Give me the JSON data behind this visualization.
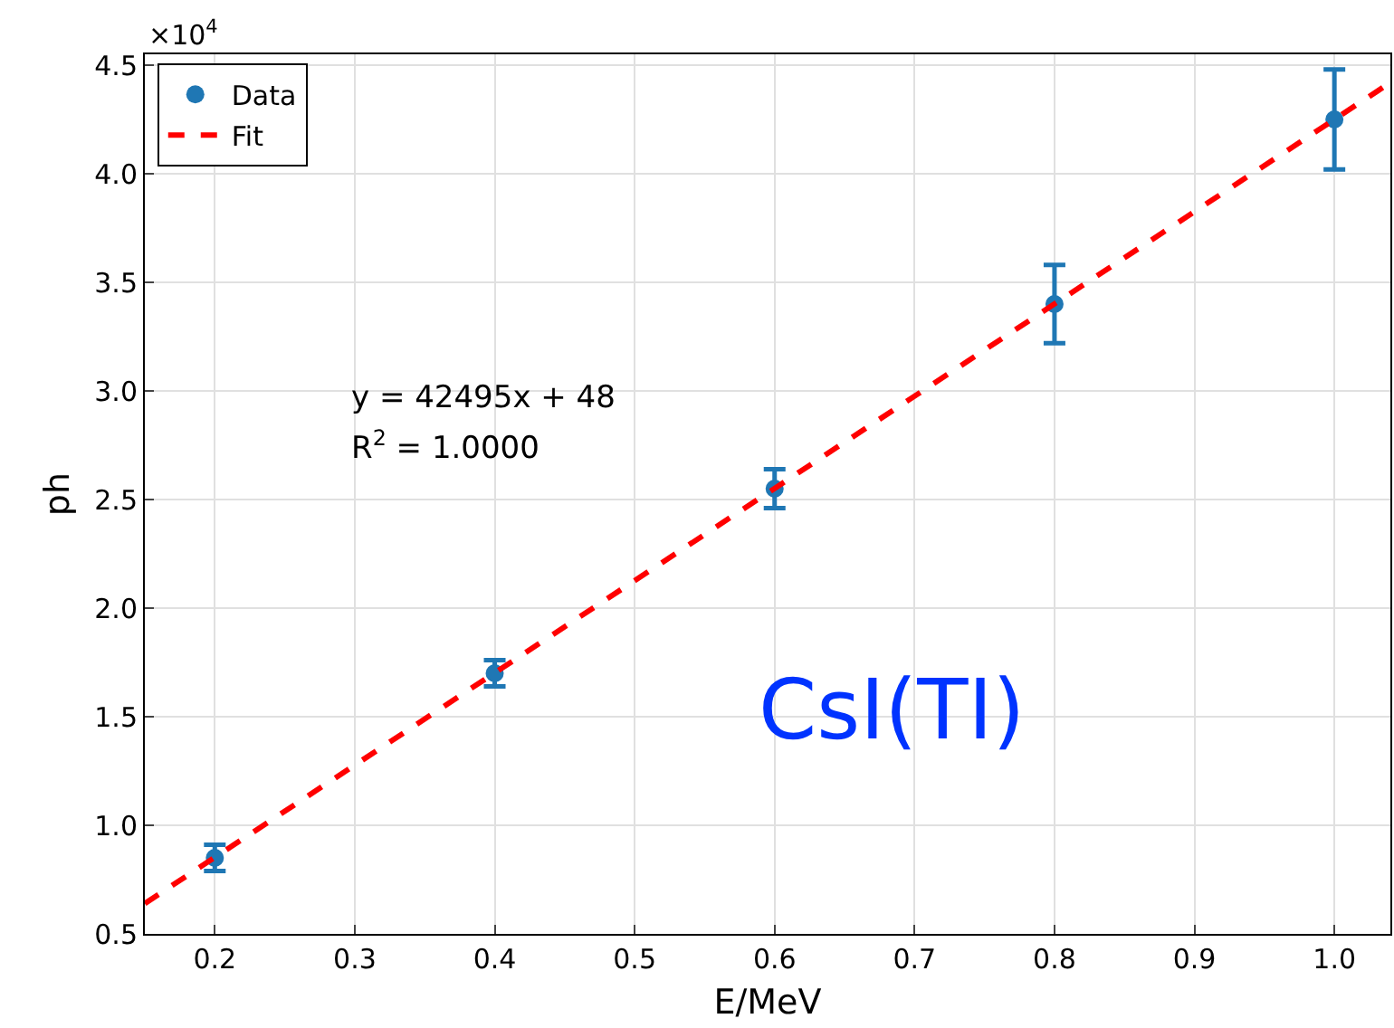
{
  "chart_data": {
    "type": "scatter",
    "xlabel": "E/MeV",
    "ylabel": "ph",
    "series": [
      {
        "name": "Data",
        "color": "#1f77b4",
        "x": [
          0.2,
          0.4,
          0.6,
          0.8,
          1.0
        ],
        "values": [
          0.85,
          1.7,
          2.55,
          3.4,
          4.25
        ],
        "errors": [
          0.06,
          0.06,
          0.09,
          0.18,
          0.23
        ]
      },
      {
        "name": "Fit",
        "type": "line",
        "color": "#ff0000",
        "marker": "none",
        "line_style": "dashed",
        "x": [
          0.15,
          1.04
        ],
        "values": [
          0.64,
          4.42
        ]
      }
    ],
    "xlim": [
      0.15,
      1.04
    ],
    "xticks": [
      0.2,
      0.3,
      0.4,
      0.5,
      0.6,
      0.7,
      0.8,
      0.9,
      {
        "value": 1.0,
        "label": "1.0"
      }
    ],
    "ylim": [
      0.5,
      4.55
    ],
    "yticks": [
      0.5,
      {
        "value": 1.0,
        "label": "1.0"
      },
      1.5,
      {
        "value": 2.0,
        "label": "2.0"
      },
      2.5,
      {
        "value": 3.0,
        "label": "3.0"
      },
      3.5,
      {
        "value": 4.0,
        "label": "4.0"
      },
      4.5
    ],
    "annotations": [
      "×10$^{4}$",
      "y = 42495x + 48",
      "R$^{2}$ = 1.0000",
      "CsI(TI)"
    ],
    "grid": true,
    "legend": "top left"
  }
}
